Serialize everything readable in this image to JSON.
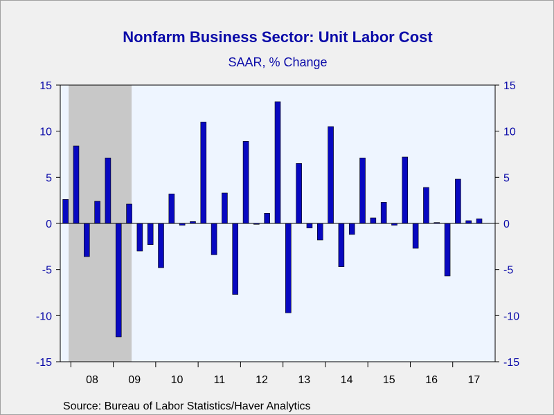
{
  "chart_data": {
    "type": "bar",
    "title": "Nonfarm Business Sector: Unit Labor Cost",
    "subtitle": "SAAR, % Change",
    "source": "Source:  Bureau of Labor Statistics/Haver Analytics",
    "ylim": [
      -15,
      15
    ],
    "yticks": [
      15,
      10,
      5,
      0,
      -5,
      -10,
      -15
    ],
    "y_axes": "left-and-right",
    "x_tick_labels": [
      "08",
      "09",
      "10",
      "11",
      "12",
      "13",
      "14",
      "15",
      "16",
      "17"
    ],
    "recession_shading": {
      "start_index": 1,
      "end_index": 6,
      "color": "#c8c8c8"
    },
    "colors": {
      "bar": "#0808c0",
      "bar_edge": "#000000",
      "plot_background": "#eef5ff",
      "text": "#0a0aa8"
    },
    "categories": [
      "2007Q4",
      "2008Q1",
      "2008Q2",
      "2008Q3",
      "2008Q4",
      "2009Q1",
      "2009Q2",
      "2009Q3",
      "2009Q4",
      "2010Q1",
      "2010Q2",
      "2010Q3",
      "2010Q4",
      "2011Q1",
      "2011Q2",
      "2011Q3",
      "2011Q4",
      "2012Q1",
      "2012Q2",
      "2012Q3",
      "2012Q4",
      "2013Q1",
      "2013Q2",
      "2013Q3",
      "2013Q4",
      "2014Q1",
      "2014Q2",
      "2014Q3",
      "2014Q4",
      "2015Q1",
      "2015Q2",
      "2015Q3",
      "2015Q4",
      "2016Q1",
      "2016Q2",
      "2016Q3",
      "2016Q4",
      "2017Q1",
      "2017Q2",
      "2017Q3",
      "2017Q4"
    ],
    "values": [
      2.6,
      8.4,
      -3.6,
      2.4,
      7.1,
      -12.3,
      2.1,
      -3.0,
      -2.3,
      -4.8,
      3.2,
      -0.2,
      0.2,
      11.0,
      -3.4,
      3.3,
      -7.7,
      8.9,
      -0.1,
      1.1,
      13.2,
      -9.7,
      6.5,
      -0.5,
      -1.8,
      10.5,
      -4.7,
      -1.2,
      7.1,
      0.6,
      2.3,
      -0.2,
      7.2,
      -2.7,
      3.9,
      0.1,
      -5.7,
      4.8,
      0.3,
      0.5,
      0.0
    ]
  }
}
